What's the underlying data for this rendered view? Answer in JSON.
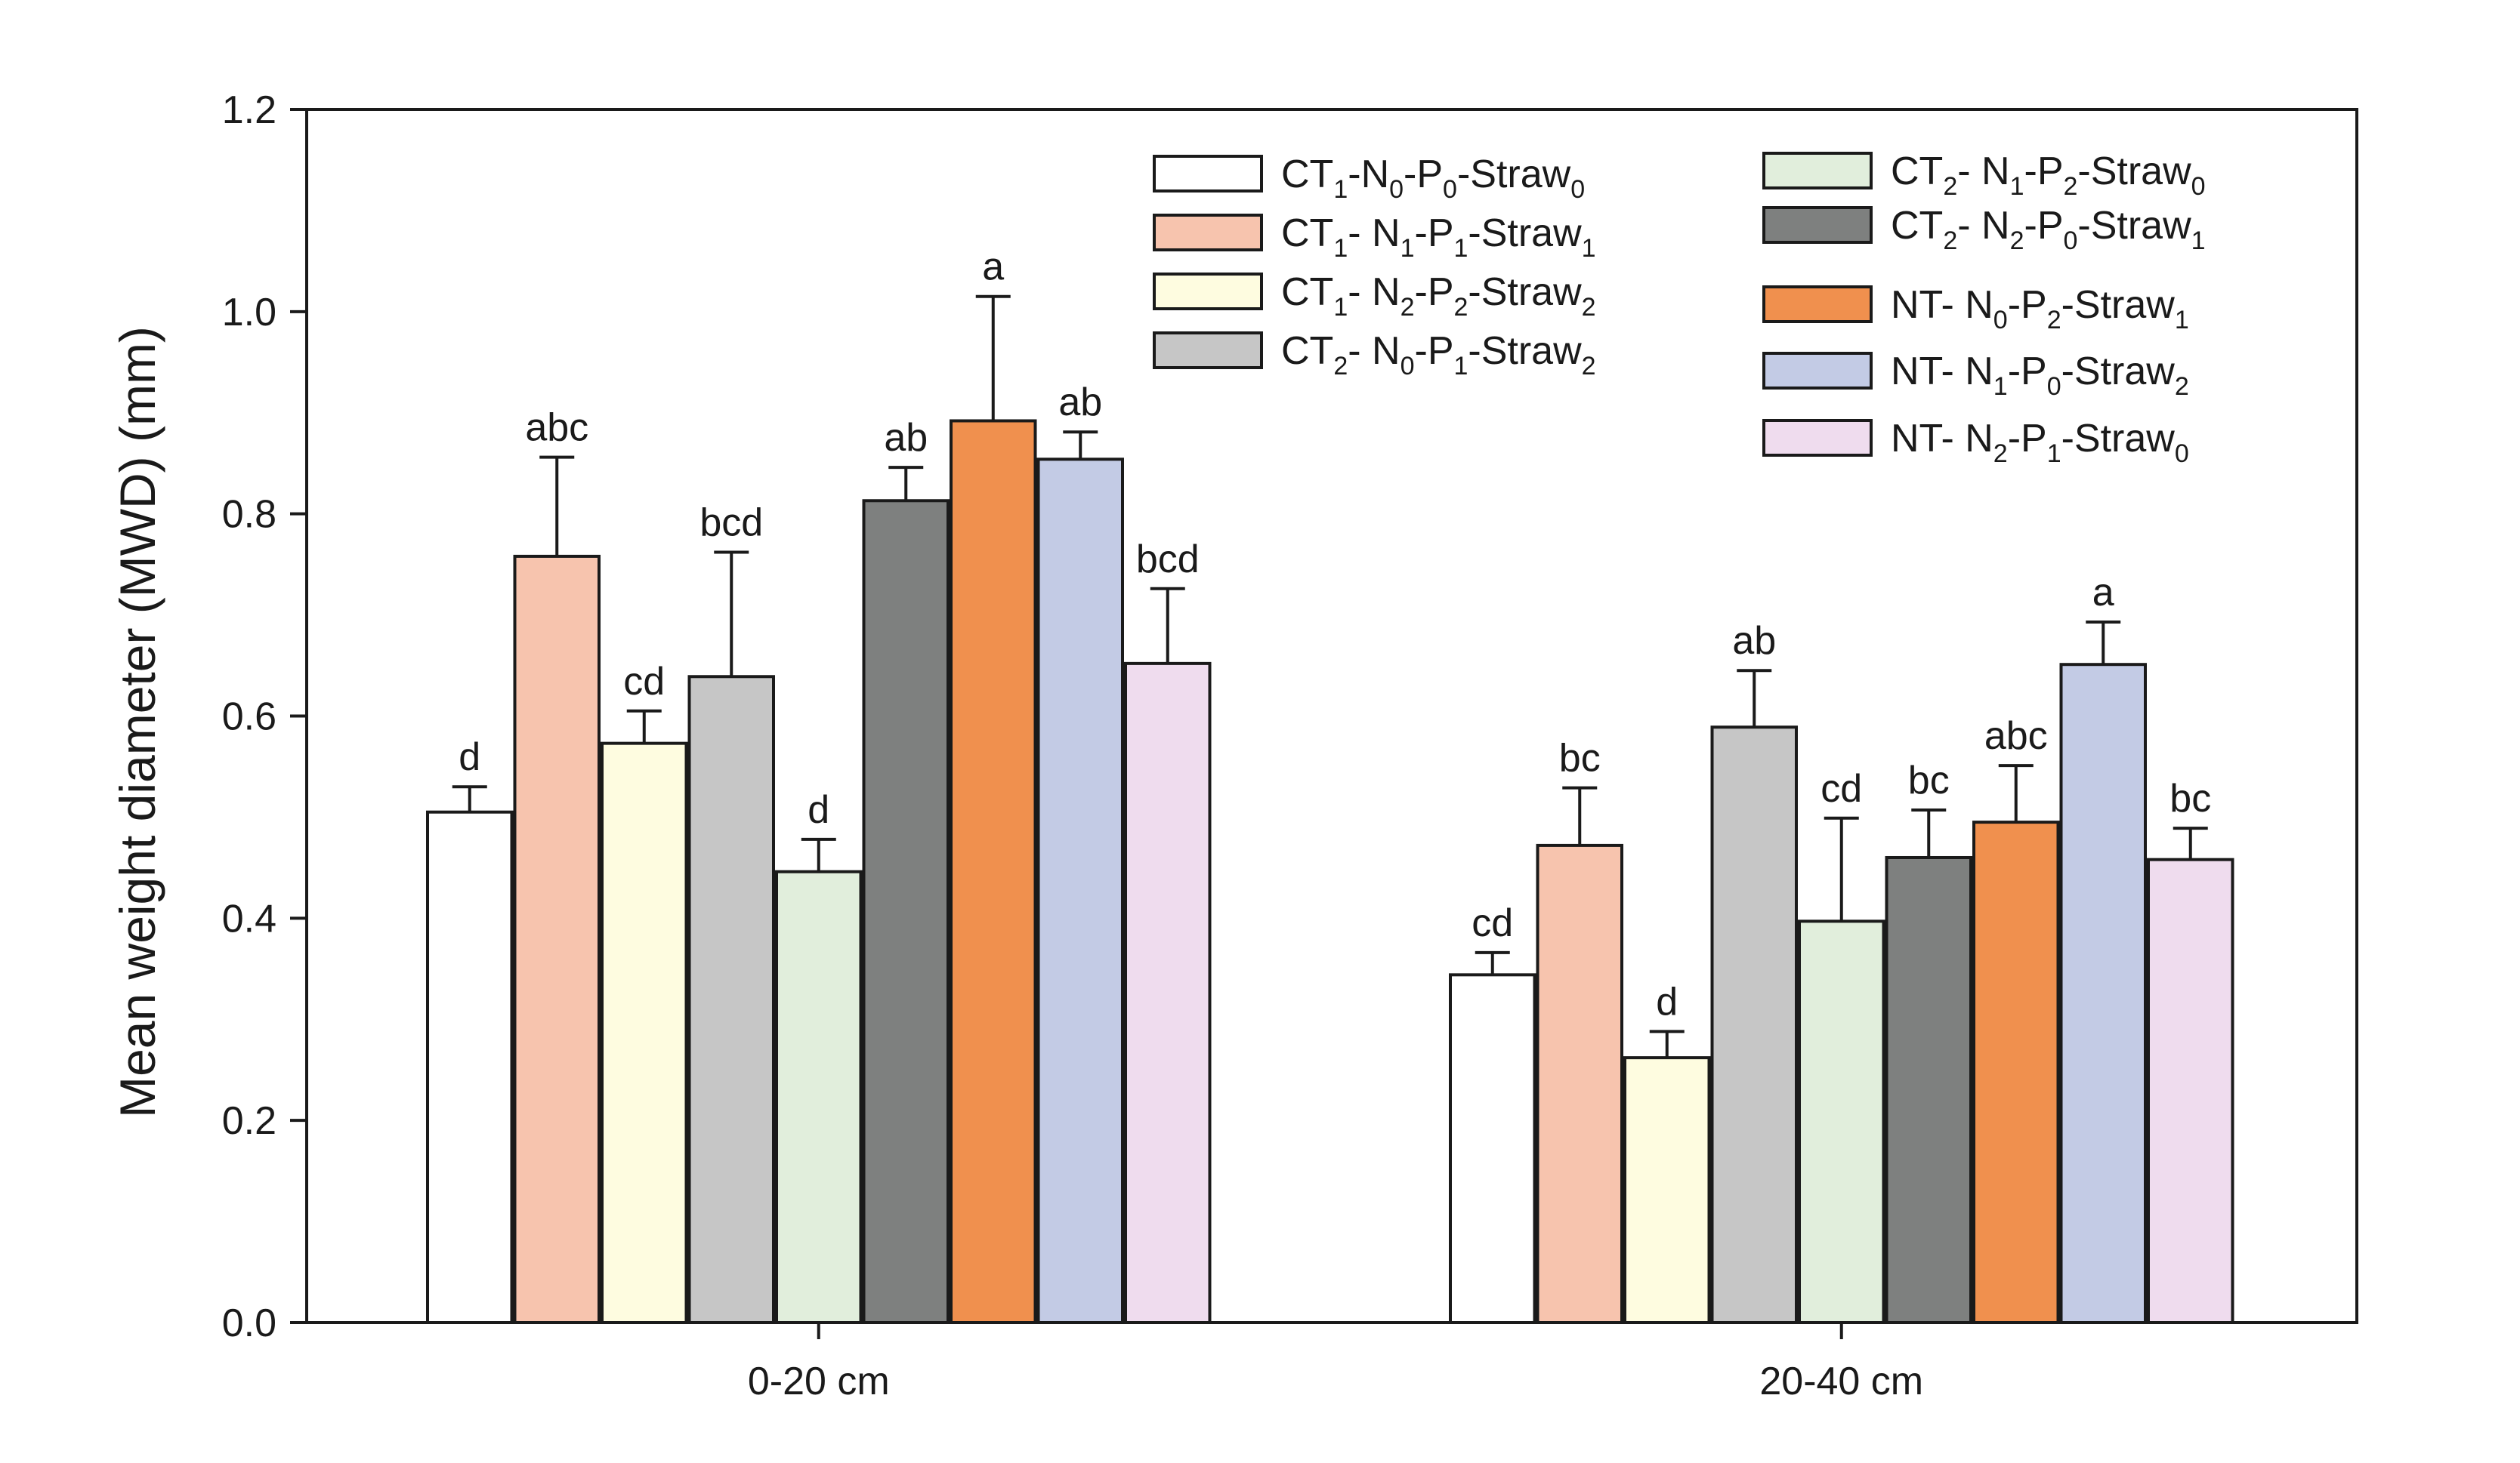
{
  "chart_data": {
    "type": "bar",
    "ylabel": "Mean weight diameter (MWD) (mm)",
    "xlabel": "",
    "ylim": [
      0,
      1.2
    ],
    "yticks": [
      "0.0",
      "0.2",
      "0.4",
      "0.6",
      "0.8",
      "1.0",
      "1.2"
    ],
    "categories": [
      "0-20 cm",
      "20-40 cm"
    ],
    "legend_position": "top-right",
    "series": [
      {
        "name": "CT1-N0-P0-Straw0",
        "legend": [
          {
            "t": "CT"
          },
          {
            "t": "1",
            "sub": true
          },
          {
            "t": "-N"
          },
          {
            "t": "0",
            "sub": true
          },
          {
            "t": "-P"
          },
          {
            "t": "0",
            "sub": true
          },
          {
            "t": "-Straw"
          },
          {
            "t": "0",
            "sub": true
          }
        ],
        "color": "#ffffff",
        "values": [
          0.505,
          0.344
        ],
        "errors": [
          0.025,
          0.022
        ],
        "labels": [
          "d",
          "cd"
        ]
      },
      {
        "name": "CT1- N1-P1-Straw1",
        "legend": [
          {
            "t": "CT"
          },
          {
            "t": "1",
            "sub": true
          },
          {
            "t": "- N"
          },
          {
            "t": "1",
            "sub": true
          },
          {
            "t": "-P"
          },
          {
            "t": "1",
            "sub": true
          },
          {
            "t": "-Straw"
          },
          {
            "t": "1",
            "sub": true
          }
        ],
        "color": "#f7c4ae",
        "values": [
          0.758,
          0.472
        ],
        "errors": [
          0.098,
          0.057
        ],
        "labels": [
          "abc",
          "bc"
        ]
      },
      {
        "name": "CT1- N2-P2-Straw2",
        "legend": [
          {
            "t": "CT"
          },
          {
            "t": "1",
            "sub": true
          },
          {
            "t": "- N"
          },
          {
            "t": "2",
            "sub": true
          },
          {
            "t": "-P"
          },
          {
            "t": "2",
            "sub": true
          },
          {
            "t": "-Straw"
          },
          {
            "t": "2",
            "sub": true
          }
        ],
        "color": "#fefce0",
        "values": [
          0.573,
          0.262
        ],
        "errors": [
          0.032,
          0.026
        ],
        "labels": [
          "cd",
          "d"
        ]
      },
      {
        "name": "CT2- N0-P1-Straw2",
        "legend": [
          {
            "t": "CT"
          },
          {
            "t": "2",
            "sub": true
          },
          {
            "t": "- N"
          },
          {
            "t": "0",
            "sub": true
          },
          {
            "t": "-P"
          },
          {
            "t": "1",
            "sub": true
          },
          {
            "t": "-Straw"
          },
          {
            "t": "2",
            "sub": true
          }
        ],
        "color": "#c6c6c6",
        "values": [
          0.639,
          0.589
        ],
        "errors": [
          0.123,
          0.056
        ],
        "labels": [
          "bcd",
          "ab"
        ]
      },
      {
        "name": "CT2- N1-P2-Straw0",
        "legend": [
          {
            "t": "CT"
          },
          {
            "t": "2",
            "sub": true
          },
          {
            "t": "- N"
          },
          {
            "t": "1",
            "sub": true
          },
          {
            "t": "-P"
          },
          {
            "t": "2",
            "sub": true
          },
          {
            "t": "-Straw"
          },
          {
            "t": "0",
            "sub": true
          }
        ],
        "color": "#e1eedc",
        "values": [
          0.446,
          0.397
        ],
        "errors": [
          0.032,
          0.102
        ],
        "labels": [
          "d",
          "cd"
        ]
      },
      {
        "name": "CT2- N2-P0-Straw1",
        "legend": [
          {
            "t": "CT"
          },
          {
            "t": "2",
            "sub": true
          },
          {
            "t": "- N"
          },
          {
            "t": "2",
            "sub": true
          },
          {
            "t": "-P"
          },
          {
            "t": "0",
            "sub": true
          },
          {
            "t": "-Straw"
          },
          {
            "t": "1",
            "sub": true
          }
        ],
        "color": "#7e807f",
        "values": [
          0.813,
          0.46
        ],
        "errors": [
          0.033,
          0.047
        ],
        "labels": [
          "ab",
          "bc"
        ]
      },
      {
        "name": "NT- N0-P2-Straw1",
        "legend": [
          {
            "t": "NT- N"
          },
          {
            "t": "0",
            "sub": true
          },
          {
            "t": "-P"
          },
          {
            "t": "2",
            "sub": true
          },
          {
            "t": "-Straw"
          },
          {
            "t": "1",
            "sub": true
          }
        ],
        "color": "#f0904e",
        "values": [
          0.892,
          0.495
        ],
        "errors": [
          0.123,
          0.056
        ],
        "labels": [
          "a",
          "abc"
        ]
      },
      {
        "name": "NT- N1-P0-Straw2",
        "legend": [
          {
            "t": "NT- N"
          },
          {
            "t": "1",
            "sub": true
          },
          {
            "t": "-P"
          },
          {
            "t": "0",
            "sub": true
          },
          {
            "t": "-Straw"
          },
          {
            "t": "2",
            "sub": true
          }
        ],
        "color": "#c3cbe5",
        "values": [
          0.854,
          0.651
        ],
        "errors": [
          0.027,
          0.042
        ],
        "labels": [
          "ab",
          "a"
        ]
      },
      {
        "name": "NT- N2-P1-Straw0",
        "legend": [
          {
            "t": "NT- N"
          },
          {
            "t": "2",
            "sub": true
          },
          {
            "t": "-P"
          },
          {
            "t": "1",
            "sub": true
          },
          {
            "t": "-Straw"
          },
          {
            "t": "0",
            "sub": true
          }
        ],
        "color": "#efdcee",
        "values": [
          0.652,
          0.458
        ],
        "errors": [
          0.074,
          0.031
        ],
        "labels": [
          "bcd",
          "bc"
        ]
      }
    ]
  }
}
